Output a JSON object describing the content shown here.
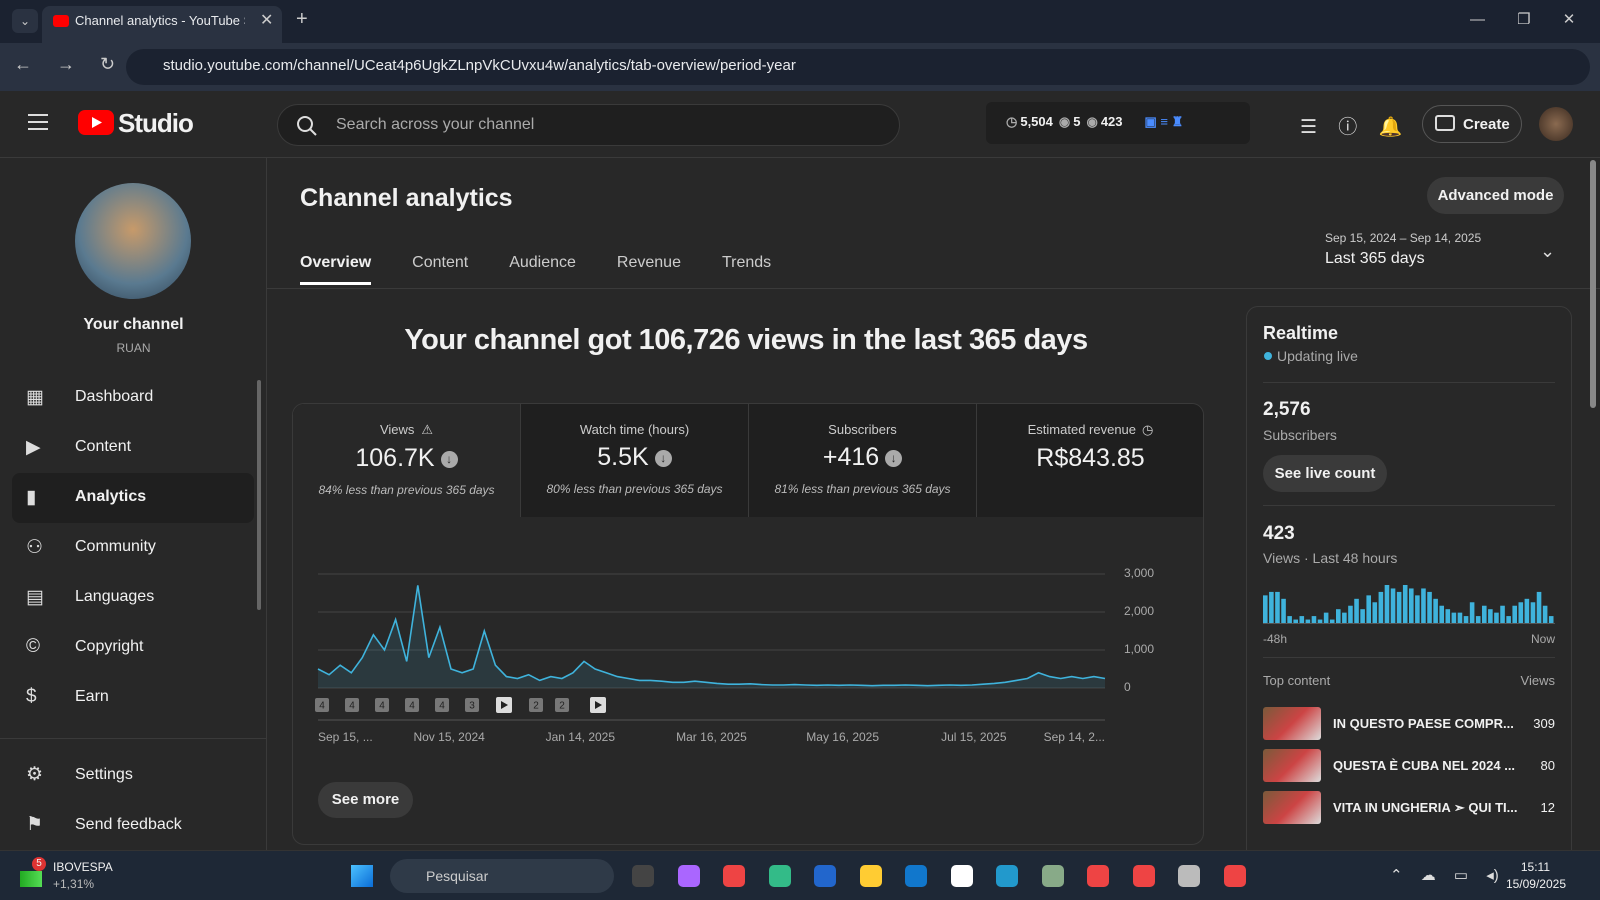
{
  "browser": {
    "tab_title": "Channel analytics - YouTube Studio",
    "url": "studio.youtube.com/channel/UCeat4p6UgkZLnpVkCUvxu4w/analytics/tab-overview/period-year"
  },
  "header": {
    "logo": "Studio",
    "search_placeholder": "Search across your channel",
    "stats": [
      "5,504",
      "5",
      "423"
    ],
    "create": "Create"
  },
  "sidebar": {
    "channel_label": "Your channel",
    "channel_name": "RUAN",
    "nav": [
      "Dashboard",
      "Content",
      "Analytics",
      "Community",
      "Languages",
      "Copyright",
      "Earn"
    ],
    "active": 2,
    "bottom": [
      "Settings",
      "Send feedback"
    ]
  },
  "main": {
    "title": "Channel analytics",
    "advanced": "Advanced mode",
    "tabs": [
      "Overview",
      "Content",
      "Audience",
      "Revenue",
      "Trends"
    ],
    "active_tab": 0,
    "date_range": "Sep 15, 2024 – Sep 14, 2025",
    "period": "Last 365 days",
    "headline": "Your channel got 106,726 views in the last 365 days",
    "metrics": [
      {
        "label": "Views",
        "value": "106.7K",
        "note": "84% less than previous 365 days"
      },
      {
        "label": "Watch time (hours)",
        "value": "5.5K",
        "note": "80% less than previous 365 days"
      },
      {
        "label": "Subscribers",
        "value": "+416",
        "note": "81% less than previous 365 days"
      },
      {
        "label": "Estimated revenue",
        "value": "R$843.85"
      }
    ],
    "see_more": "See more"
  },
  "chart": {
    "type": "line",
    "color": "#3fb3dc",
    "ylim": [
      0,
      3000
    ],
    "yticks": [
      0,
      {
        "value": 1000,
        "label": "1,000"
      },
      {
        "value": 2000,
        "label": "2,000"
      },
      {
        "value": 3000,
        "label": "3,000"
      }
    ],
    "x_ticks": [
      "Sep 15, ...",
      "Nov 15, 2024",
      "Jan 14, 2025",
      "Mar 16, 2025",
      "May 16, 2025",
      "Jul 15, 2025",
      "Sep 14, 2..."
    ],
    "markers": [
      "4",
      "4",
      "4",
      "4",
      "4",
      "3",
      "2",
      "2"
    ],
    "values": [
      500,
      350,
      600,
      400,
      800,
      1400,
      1000,
      1800,
      700,
      2700,
      800,
      1600,
      500,
      400,
      500,
      1500,
      600,
      300,
      250,
      350,
      200,
      300,
      250,
      400,
      700,
      500,
      400,
      300,
      250,
      200,
      200,
      180,
      150,
      150,
      180,
      150,
      120,
      100,
      100,
      110,
      90,
      80,
      80,
      90,
      80,
      70,
      80,
      70,
      80,
      70,
      60,
      70,
      70,
      80,
      70,
      60,
      70,
      80,
      70,
      80,
      100,
      120,
      150,
      200,
      250,
      400,
      300,
      250,
      300,
      250,
      300,
      250
    ]
  },
  "realtime": {
    "title": "Realtime",
    "status": "Updating live",
    "subscribers": "2,576",
    "subscribers_label": "Subscribers",
    "live_button": "See live count",
    "views": "423",
    "views_label": "Views · Last 48 hours",
    "start": "-48h",
    "end": "Now",
    "color": "#3fb3dc",
    "bars": [
      8,
      9,
      9,
      7,
      2,
      1,
      2,
      1,
      2,
      1,
      3,
      1,
      4,
      3,
      5,
      7,
      4,
      8,
      6,
      9,
      11,
      10,
      9,
      11,
      10,
      8,
      10,
      9,
      7,
      5,
      4,
      3,
      3,
      2,
      6,
      2,
      5,
      4,
      3,
      5,
      2,
      5,
      6,
      7,
      6,
      9,
      5,
      2
    ],
    "top_label": "Top content",
    "views_col": "Views",
    "top": [
      {
        "title": "IN QUESTO PAESE COMPR...",
        "views": "309"
      },
      {
        "title": "QUESTA È CUBA NEL 2024 ...",
        "views": "80"
      },
      {
        "title": "VITA IN UNGHERIA ➣ QUI TI...",
        "views": "12"
      }
    ]
  },
  "taskbar": {
    "badge": "5",
    "ticker": "IBOVESPA",
    "change": "+1,31%",
    "search": "Pesquisar",
    "time": "15:11",
    "date": "15/09/2025"
  }
}
